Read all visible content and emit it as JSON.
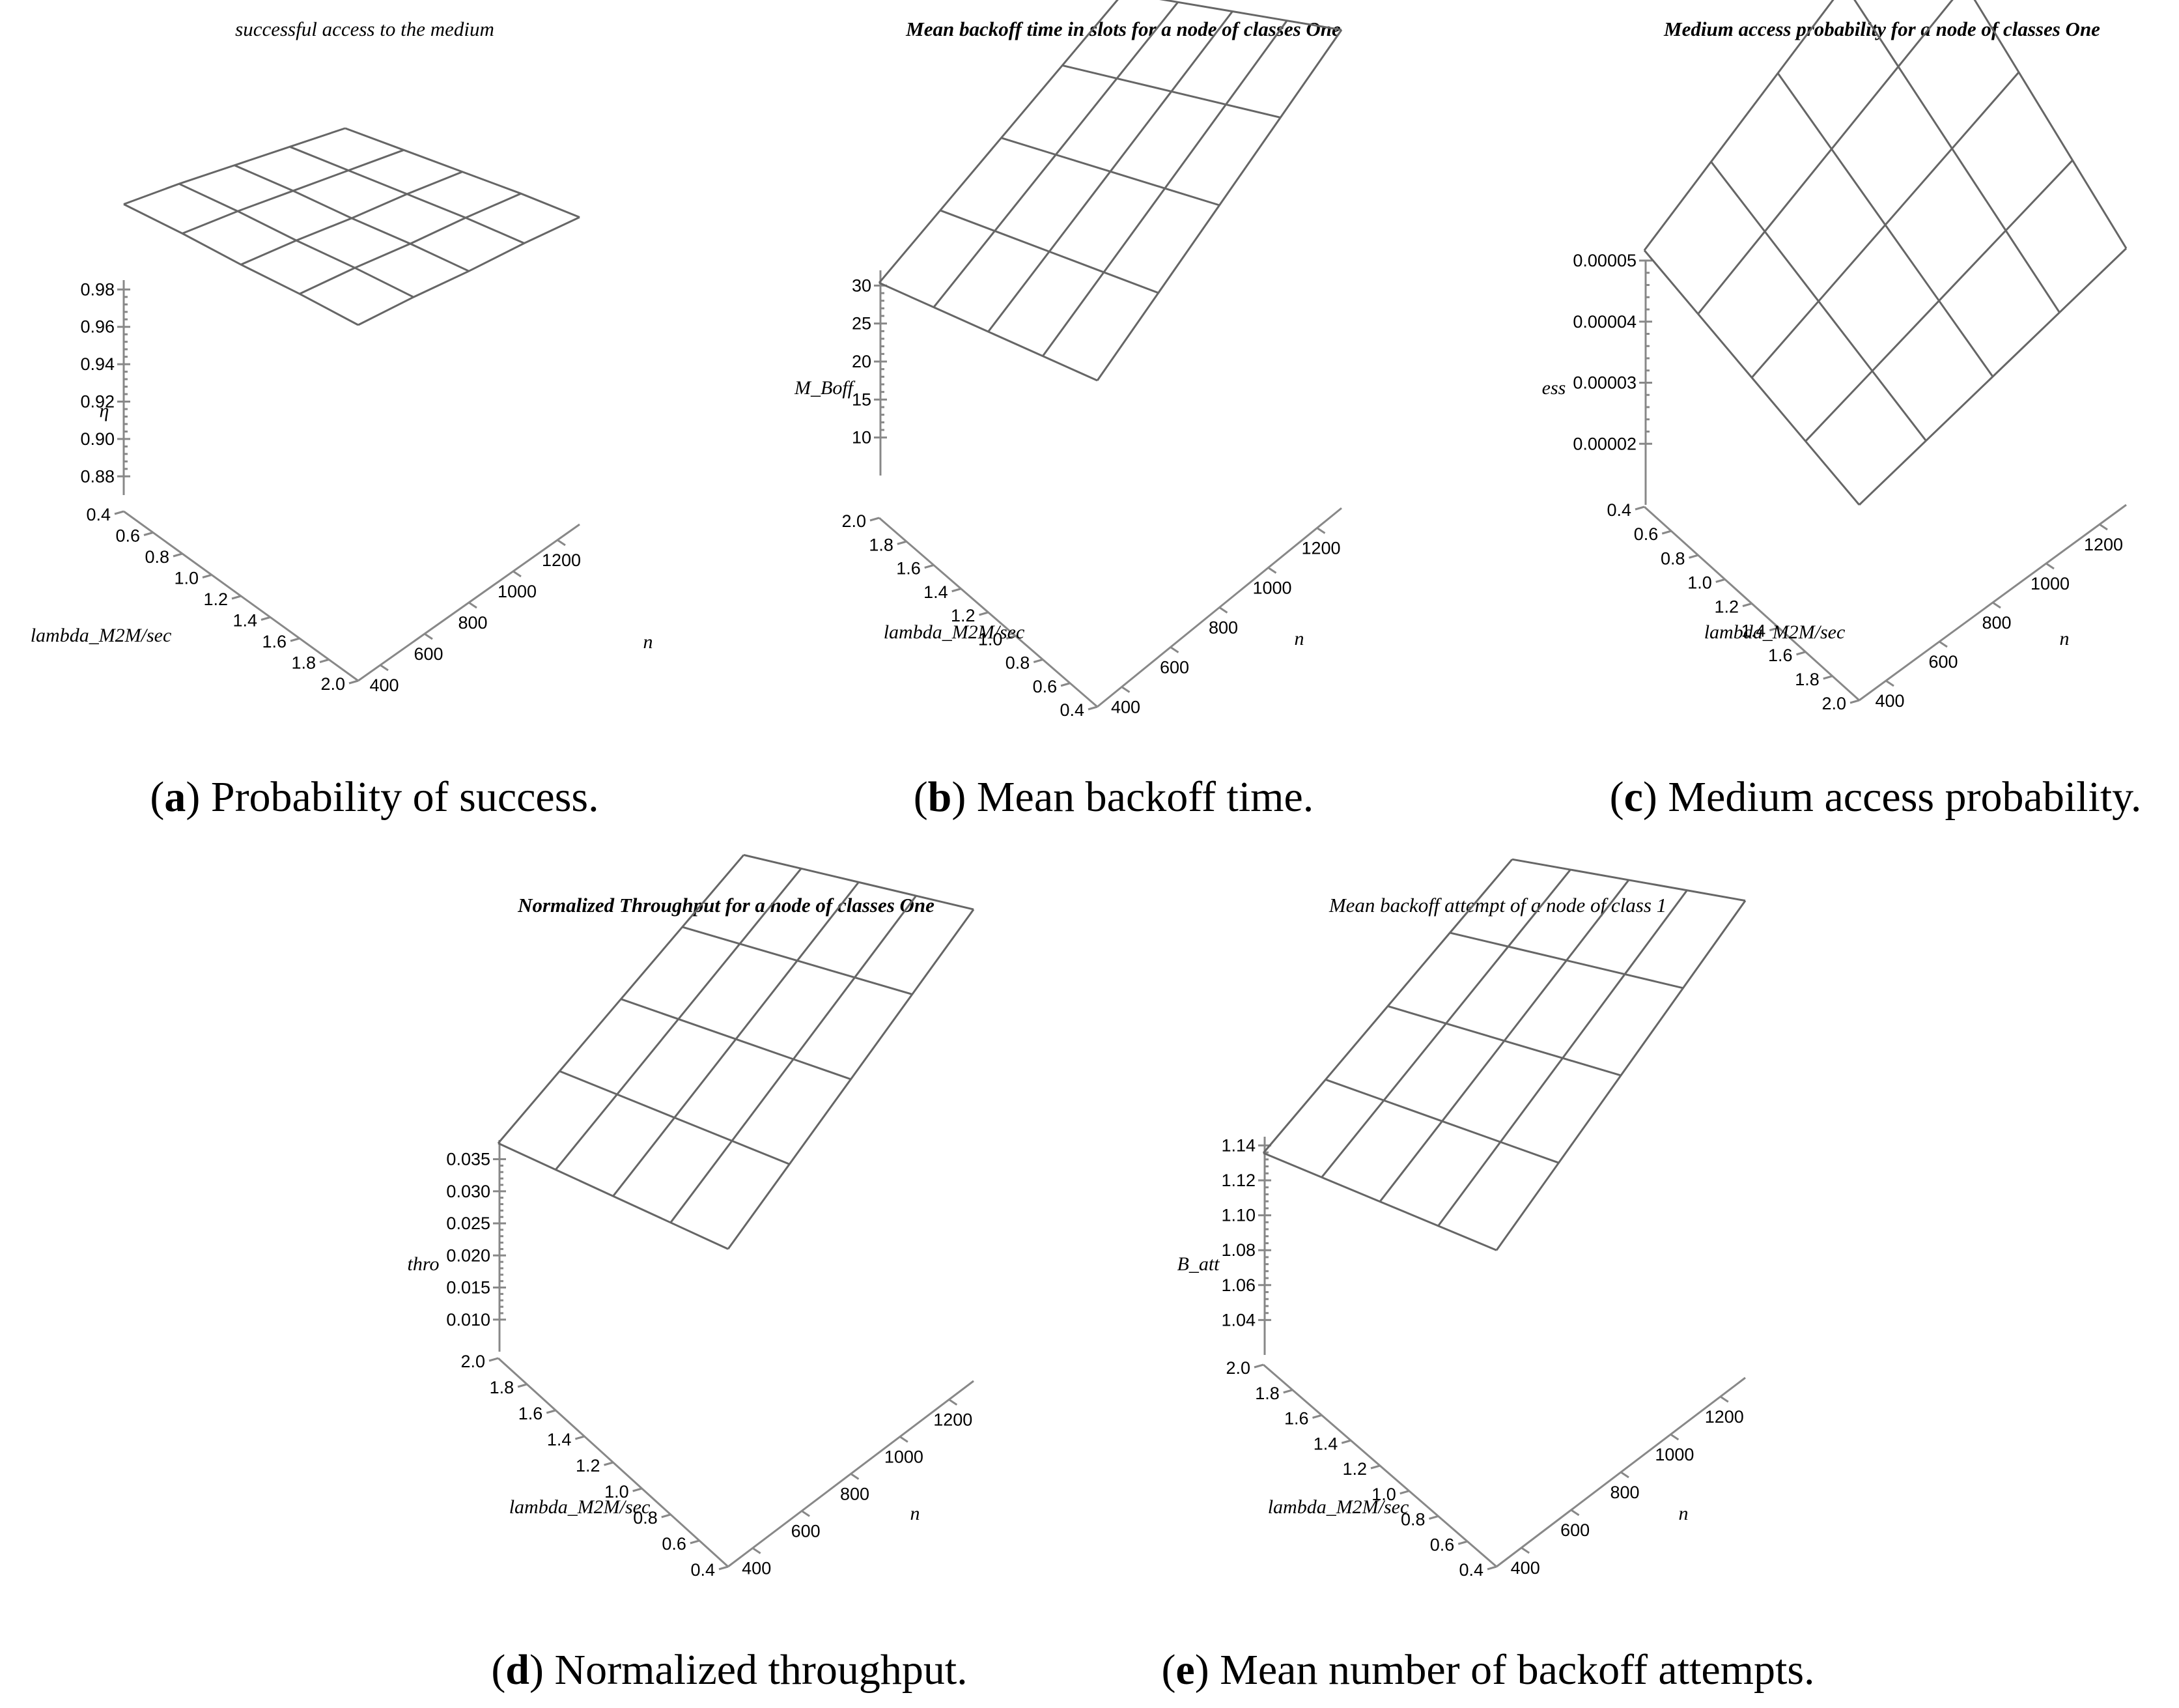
{
  "chart_data": [
    {
      "id": "a",
      "type": "surface",
      "title": "successful access to the medium",
      "title_bold": false,
      "caption_letter": "a",
      "caption_text": "Probability of success.",
      "zlabel": "η",
      "xlabel": "lambda_M2M/sec",
      "ylabel": "n",
      "lambda_ticks": [
        "0.4",
        "0.6",
        "0.8",
        "1.0",
        "1.2",
        "1.4",
        "1.6",
        "1.8",
        "2.0"
      ],
      "n_ticks": [
        "400",
        "600",
        "800",
        "1000",
        "1200"
      ],
      "z_ticks": [
        "0.88",
        "0.90",
        "0.92",
        "0.94",
        "0.96",
        "0.98"
      ],
      "lambda_range": [
        0.4,
        2.0
      ],
      "n_range": [
        300,
        1300
      ],
      "zlim": [
        0.87,
        0.985
      ],
      "surface": {
        "lambda": [
          0.4,
          0.8,
          1.2,
          1.6,
          2.0
        ],
        "n": [
          300,
          550,
          800,
          1050,
          1300
        ],
        "z": [
          [
            0.961,
            0.955,
            0.948,
            0.942,
            0.935
          ],
          [
            0.955,
            0.948,
            0.94,
            0.933,
            0.925
          ],
          [
            0.948,
            0.94,
            0.931,
            0.923,
            0.914
          ],
          [
            0.942,
            0.933,
            0.923,
            0.913,
            0.903
          ],
          [
            0.935,
            0.925,
            0.914,
            0.903,
            0.892
          ]
        ]
      }
    },
    {
      "id": "b",
      "type": "surface",
      "title": "Mean backoff time in slots for a node of  classes One",
      "title_bold": true,
      "caption_letter": "b",
      "caption_text": "Mean backoff time.",
      "zlabel": "M_Boff",
      "xlabel": "lambda_M2M/sec",
      "ylabel": "n",
      "lambda_ticks": [
        "2.0",
        "1.8",
        "1.6",
        "1.4",
        "1.2",
        "1.0",
        "0.8",
        "0.6",
        "0.4"
      ],
      "n_ticks": [
        "400",
        "600",
        "800",
        "1000",
        "1200"
      ],
      "z_ticks": [
        "10",
        "15",
        "20",
        "25",
        "30"
      ],
      "lambda_range": [
        0.4,
        2.0
      ],
      "n_range": [
        300,
        1300
      ],
      "zlim": [
        5,
        32
      ],
      "surface": {
        "lambda": [
          0.4,
          0.8,
          1.2,
          1.6,
          2.0
        ],
        "n": [
          300,
          550,
          800,
          1050,
          1300
        ],
        "z": [
          [
            5.5,
            8.5,
            11.5,
            14.5,
            17.5
          ],
          [
            8.5,
            12,
            15.5,
            19,
            22.5
          ],
          [
            11.5,
            15.5,
            19.5,
            23.5,
            27.5
          ],
          [
            14.5,
            19,
            23.5,
            28,
            32.5
          ],
          [
            17.5,
            22.5,
            27.5,
            32.5,
            37.5
          ]
        ]
      }
    },
    {
      "id": "c",
      "type": "surface",
      "title": "Medium access probability for a node of  classes One",
      "title_bold": true,
      "caption_letter": "c",
      "caption_text": "Medium access probability.",
      "zlabel": "ess",
      "xlabel": "lambda_M2M/sec",
      "ylabel": "n",
      "lambda_ticks": [
        "0.4",
        "0.6",
        "0.8",
        "1.0",
        "1.2",
        "1.4",
        "1.6",
        "1.8",
        "2.0"
      ],
      "n_ticks": [
        "400",
        "600",
        "800",
        "1000",
        "1200"
      ],
      "z_ticks": [
        "0.00002",
        "0.00003",
        "0.00004",
        "0.00005"
      ],
      "lambda_range": [
        0.4,
        2.0
      ],
      "n_range": [
        300,
        1300
      ],
      "zlim": [
        1e-05,
        5e-05
      ],
      "surface": {
        "lambda": [
          0.4,
          0.8,
          1.2,
          1.6,
          2.0
        ],
        "n": [
          300,
          550,
          800,
          1050,
          1300
        ],
        "z": [
          [
            1e-05,
            1.25e-05,
            1.5e-05,
            1.75e-05,
            2e-05
          ],
          [
            1.25e-05,
            1.6e-05,
            1.95e-05,
            2.3e-05,
            2.65e-05
          ],
          [
            1.5e-05,
            1.95e-05,
            2.4e-05,
            2.85e-05,
            3.3e-05
          ],
          [
            1.75e-05,
            2.3e-05,
            2.85e-05,
            3.4e-05,
            3.95e-05
          ],
          [
            2e-05,
            2.65e-05,
            3.3e-05,
            3.95e-05,
            4.6e-05
          ]
        ]
      }
    },
    {
      "id": "d",
      "type": "surface",
      "title": "Normalized Throughput for a node of  classes One",
      "title_bold": true,
      "caption_letter": "d",
      "caption_text": "Normalized throughput.",
      "zlabel": "thro",
      "xlabel": "lambda_M2M/sec",
      "ylabel": "n",
      "lambda_ticks": [
        "2.0",
        "1.8",
        "1.6",
        "1.4",
        "1.2",
        "1.0",
        "0.8",
        "0.6",
        "0.4"
      ],
      "n_ticks": [
        "400",
        "600",
        "800",
        "1000",
        "1200"
      ],
      "z_ticks": [
        "0.010",
        "0.015",
        "0.020",
        "0.025",
        "0.030",
        "0.035"
      ],
      "lambda_range": [
        0.4,
        2.0
      ],
      "n_range": [
        300,
        1300
      ],
      "zlim": [
        0.005,
        0.038
      ],
      "surface": {
        "lambda": [
          0.4,
          0.8,
          1.2,
          1.6,
          2.0
        ],
        "n": [
          300,
          550,
          800,
          1050,
          1300
        ],
        "z": [
          [
            0.005,
            0.009,
            0.013,
            0.017,
            0.021
          ],
          [
            0.009,
            0.0135,
            0.018,
            0.0225,
            0.027
          ],
          [
            0.013,
            0.018,
            0.023,
            0.028,
            0.033
          ],
          [
            0.017,
            0.0225,
            0.028,
            0.0335,
            0.039
          ],
          [
            0.021,
            0.027,
            0.033,
            0.039,
            0.045
          ]
        ]
      }
    },
    {
      "id": "e",
      "type": "surface",
      "title": "Mean backoff attempt of a node of class  1",
      "title_bold": false,
      "caption_letter": "e",
      "caption_text": "Mean number of backoff attempts.",
      "zlabel": "B_att",
      "xlabel": "lambda_M2M/sec",
      "ylabel": "n",
      "lambda_ticks": [
        "2.0",
        "1.8",
        "1.6",
        "1.4",
        "1.2",
        "1.0",
        "0.8",
        "0.6",
        "0.4"
      ],
      "n_ticks": [
        "400",
        "600",
        "800",
        "1000",
        "1200"
      ],
      "z_ticks": [
        "1.04",
        "1.06",
        "1.08",
        "1.10",
        "1.12",
        "1.14"
      ],
      "lambda_range": [
        0.4,
        2.0
      ],
      "n_range": [
        300,
        1300
      ],
      "zlim": [
        1.02,
        1.145
      ],
      "surface": {
        "lambda": [
          0.4,
          0.8,
          1.2,
          1.6,
          2.0
        ],
        "n": [
          300,
          550,
          800,
          1050,
          1300
        ],
        "z": [
          [
            1.02,
            1.035,
            1.05,
            1.065,
            1.08
          ],
          [
            1.035,
            1.052,
            1.069,
            1.086,
            1.103
          ],
          [
            1.05,
            1.069,
            1.088,
            1.107,
            1.126
          ],
          [
            1.065,
            1.086,
            1.107,
            1.128,
            1.149
          ],
          [
            1.08,
            1.103,
            1.126,
            1.149,
            1.172
          ]
        ]
      }
    }
  ]
}
